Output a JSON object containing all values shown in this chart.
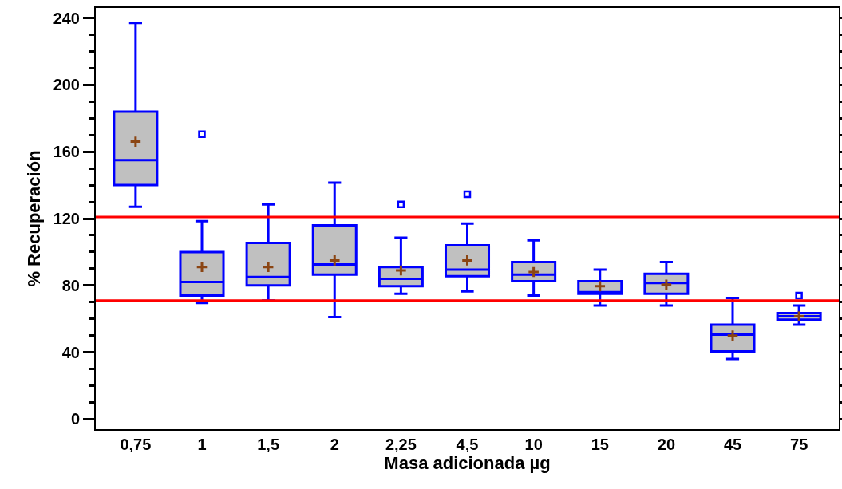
{
  "chart_data": {
    "type": "box",
    "xlabel": "Masa adicionada µg",
    "ylabel": "% Recuperación",
    "categories": [
      "0,75",
      "1",
      "1,5",
      "2",
      "2,25",
      "4,5",
      "10",
      "15",
      "20",
      "45",
      "75"
    ],
    "ylim": [
      -6,
      246
    ],
    "yticks": [
      0,
      40,
      80,
      120,
      160,
      200,
      240
    ],
    "grid": false,
    "marker": "square",
    "series": [
      {
        "color": "#0000ff",
        "boxes": [
          {
            "low": 127,
            "q1": 140,
            "median": 155,
            "q3": 184,
            "high": 237,
            "mean": 166
          },
          {
            "low": 69.5,
            "q1": 74,
            "median": 82,
            "q3": 100,
            "high": 118.5,
            "mean": 91,
            "outliers": [
              170.5
            ]
          },
          {
            "low": 71,
            "q1": 80,
            "median": 85,
            "q3": 105.5,
            "high": 128.5,
            "mean": 91
          },
          {
            "low": 61,
            "q1": 86.5,
            "median": 92.5,
            "q3": 116,
            "high": 141.5,
            "mean": 95
          },
          {
            "low": 75,
            "q1": 79.5,
            "median": 84,
            "q3": 91,
            "high": 108.5,
            "mean": 89,
            "outliers": [
              128.5
            ]
          },
          {
            "low": 76.5,
            "q1": 85.5,
            "median": 89.5,
            "q3": 104,
            "high": 117,
            "mean": 95,
            "outliers": [
              134.5
            ]
          },
          {
            "low": 74,
            "q1": 82.5,
            "median": 86.5,
            "q3": 94,
            "high": 107,
            "mean": 88
          },
          {
            "low": 68,
            "q1": 75,
            "median": 76,
            "q3": 82.5,
            "high": 89.5,
            "mean": 79.5
          },
          {
            "low": 68,
            "q1": 75,
            "median": 81.5,
            "q3": 87,
            "high": 94,
            "mean": 80.5
          },
          {
            "low": 36,
            "q1": 40.5,
            "median": 50.5,
            "q3": 56.5,
            "high": 72.5,
            "mean": 50
          },
          {
            "low": 56.5,
            "q1": 59.5,
            "median": 61.5,
            "q3": 63.5,
            "high": 68,
            "mean": 61.5,
            "outliers": [
              74
            ]
          }
        ]
      }
    ],
    "ref_lines": [
      {
        "axis": "y",
        "value": 121,
        "color": "#ff0000"
      },
      {
        "axis": "y",
        "value": 71,
        "color": "#ff0000"
      }
    ]
  }
}
